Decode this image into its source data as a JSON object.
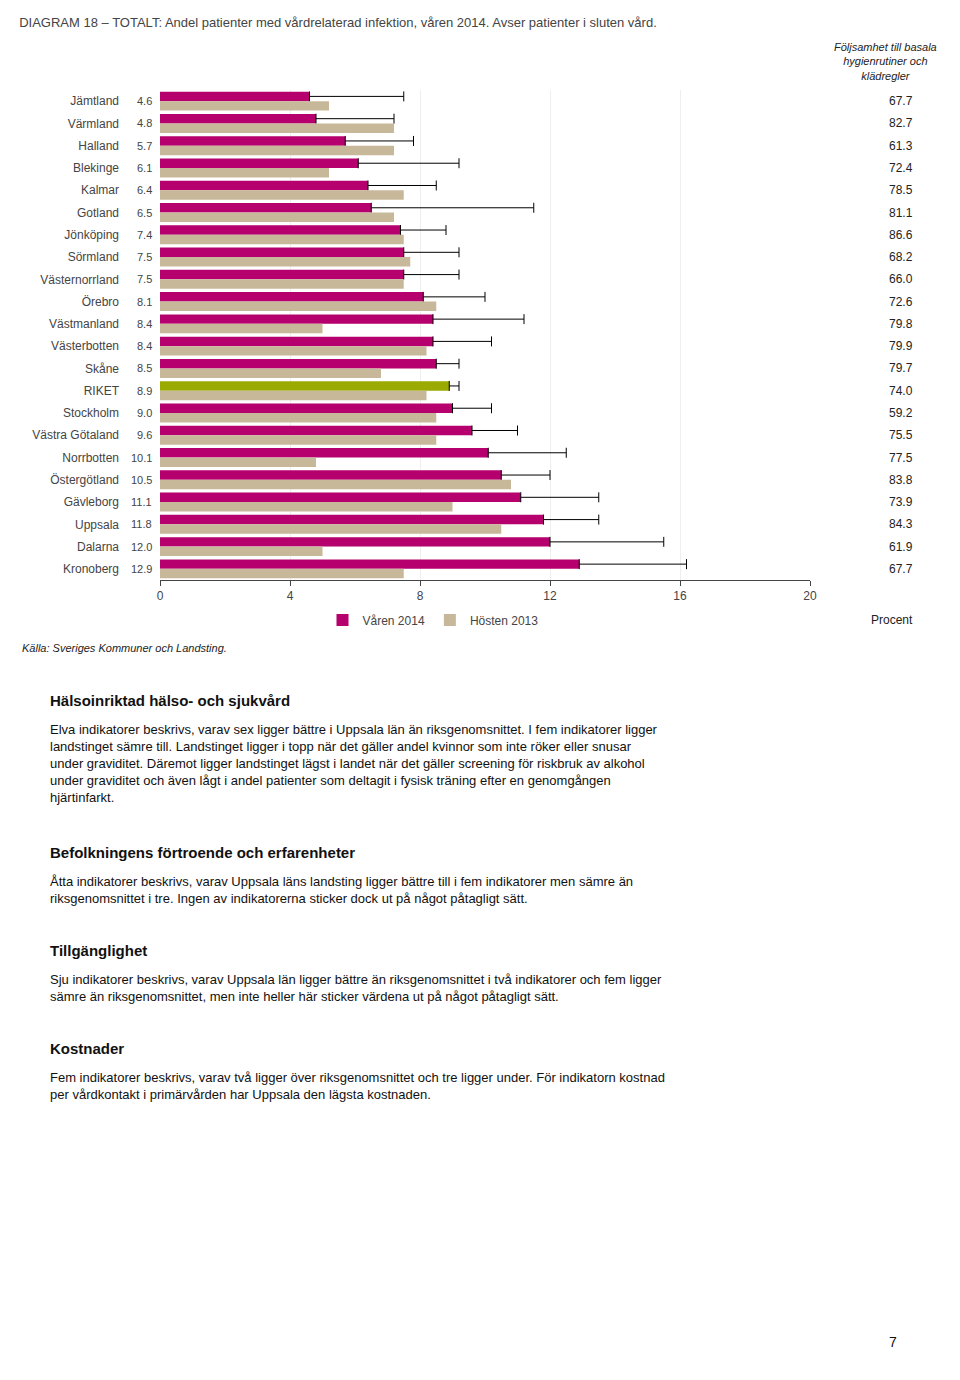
{
  "chart_data": {
    "type": "bar",
    "orientation": "horizontal",
    "title": "DIAGRAM 18 – TOTALT: Andel patienter med vårdrelaterad infektion, våren 2014. Avser patienter i sluten vård.",
    "xlabel": "Procent",
    "source": "Källa: Sveriges Kommuner och Landsting.",
    "categories": [
      "Jämtland",
      "Värmland",
      "Halland",
      "Blekinge",
      "Kalmar",
      "Gotland",
      "Jönköping",
      "Sörmland",
      "Västernorrland",
      "Örebro",
      "Västmanland",
      "Västerbotten",
      "Skåne",
      "RIKET",
      "Stockholm",
      "Västra Götaland",
      "Norrbotten",
      "Östergötland",
      "Gävleborg",
      "Uppsala",
      "Dalarna",
      "Kronoberg"
    ],
    "left_labels": [
      4.6,
      4.8,
      5.7,
      6.1,
      6.4,
      6.5,
      7.4,
      7.5,
      7.5,
      8.1,
      8.4,
      8.4,
      8.5,
      8.9,
      9.0,
      9.6,
      10.1,
      10.5,
      11.1,
      11.8,
      12.0,
      12.9
    ],
    "series": [
      {
        "name": "Våren 2014",
        "colors": [
          "#b5006e",
          "#b5006e",
          "#b5006e",
          "#b5006e",
          "#b5006e",
          "#b5006e",
          "#b5006e",
          "#b5006e",
          "#b5006e",
          "#b5006e",
          "#b5006e",
          "#b5006e",
          "#b5006e",
          "#9aaa00",
          "#b5006e",
          "#b5006e",
          "#b5006e",
          "#b5006e",
          "#b5006e",
          "#b5006e",
          "#b5006e",
          "#b5006e"
        ],
        "values": [
          4.6,
          4.8,
          5.7,
          6.1,
          6.4,
          6.5,
          7.4,
          7.5,
          7.5,
          8.1,
          8.4,
          8.4,
          8.5,
          8.9,
          9.0,
          9.6,
          10.1,
          10.5,
          11.1,
          11.8,
          12.0,
          12.9
        ],
        "error_high": [
          7.5,
          7.2,
          7.8,
          9.2,
          8.5,
          11.5,
          8.8,
          9.2,
          9.2,
          10.0,
          11.2,
          10.2,
          9.2,
          9.2,
          10.2,
          11.0,
          12.5,
          12.0,
          13.5,
          13.5,
          15.5,
          16.2
        ]
      },
      {
        "name": "Hösten 2013",
        "color": "#c8b89a",
        "values": [
          5.2,
          7.2,
          7.2,
          5.2,
          7.5,
          7.2,
          7.5,
          7.7,
          7.5,
          8.5,
          5.0,
          8.2,
          6.8,
          8.2,
          8.5,
          8.5,
          4.8,
          10.8,
          9.0,
          10.5,
          5.0,
          7.5
        ]
      }
    ],
    "right_column": {
      "title": "Följsamhet till basala hygienrutiner och klädregler",
      "values": [
        67.7,
        82.7,
        61.3,
        72.4,
        78.5,
        81.1,
        86.6,
        68.2,
        66.0,
        72.6,
        79.8,
        79.9,
        79.7,
        74.0,
        59.2,
        75.5,
        77.5,
        83.8,
        73.9,
        84.3,
        61.9,
        67.7
      ]
    },
    "xlim": [
      0,
      20
    ],
    "xticks": [
      0,
      4,
      8,
      12,
      16,
      20
    ],
    "grid": true,
    "legend": "bottom",
    "text_sections": [
      {
        "heading": "Hälsoinriktad hälso- och sjukvård",
        "body": "Elva indikatorer beskrivs, varav sex ligger bättre i Uppsala län än riksgenomsnittet. I fem indikatorer ligger landstinget sämre till. Landstinget ligger i topp när det gäller andel kvinnor som inte röker eller snusar under graviditet. Däremot ligger landstinget lägst i landet när det gäller screening för riskbruk av alkohol under graviditet och även lågt i andel patienter som deltagit i fysisk träning efter en genomgången hjärtinfarkt."
      },
      {
        "heading": "Befolkningens förtroende och erfarenheter",
        "body": "Åtta indikatorer beskrivs, varav Uppsala läns landsting ligger bättre till i fem indikatorer men sämre än riksgenomsnittet i tre. Ingen av indikatorerna sticker dock ut på något påtagligt sätt."
      },
      {
        "heading": "Tillgänglighet",
        "body": "Sju indikatorer beskrivs, varav Uppsala län ligger bättre än riksgenomsnittet i två indikatorer och fem ligger sämre än riksgenomsnittet, men inte heller här sticker värdena ut på något påtagligt sätt."
      },
      {
        "heading": "Kostnader",
        "body": "Fem indikatorer beskrivs, varav två ligger över riksgenomsnittet och tre ligger under. För indikatorn kostnad per vårdkontakt i primärvården har Uppsala den lägsta kostnaden."
      }
    ],
    "page_number": "7"
  }
}
